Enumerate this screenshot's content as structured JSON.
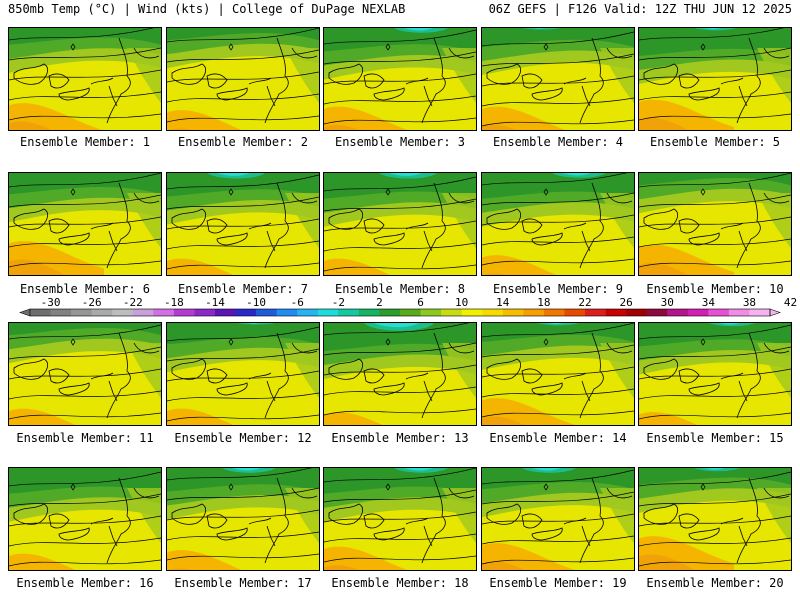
{
  "header": {
    "left": "850mb Temp (°C) | Wind (kts) | College of DuPage NEXLAB",
    "right": "06Z GEFS | F126 Valid: 12Z THU JUN 12 2025"
  },
  "members": [
    {
      "label": "Ensemble Member: 1"
    },
    {
      "label": "Ensemble Member: 2"
    },
    {
      "label": "Ensemble Member: 3"
    },
    {
      "label": "Ensemble Member: 4"
    },
    {
      "label": "Ensemble Member: 5"
    },
    {
      "label": "Ensemble Member: 6"
    },
    {
      "label": "Ensemble Member: 7"
    },
    {
      "label": "Ensemble Member: 8"
    },
    {
      "label": "Ensemble Member: 9"
    },
    {
      "label": "Ensemble Member: 10"
    },
    {
      "label": "Ensemble Member: 11"
    },
    {
      "label": "Ensemble Member: 12"
    },
    {
      "label": "Ensemble Member: 13"
    },
    {
      "label": "Ensemble Member: 14"
    },
    {
      "label": "Ensemble Member: 15"
    },
    {
      "label": "Ensemble Member: 16"
    },
    {
      "label": "Ensemble Member: 17"
    },
    {
      "label": "Ensemble Member: 18"
    },
    {
      "label": "Ensemble Member: 19"
    },
    {
      "label": "Ensemble Member: 20"
    }
  ],
  "colorbar": {
    "ticks": [
      "-30",
      "-26",
      "-22",
      "-18",
      "-14",
      "-10",
      "-6",
      "-2",
      "2",
      "6",
      "10",
      "14",
      "18",
      "22",
      "26",
      "30",
      "34",
      "38",
      "42"
    ],
    "colors": [
      "#6e6e6e",
      "#828282",
      "#969696",
      "#aaaaaa",
      "#bdbdbd",
      "#c8a0dc",
      "#d26ee6",
      "#b43cd2",
      "#8c28c8",
      "#5a14b4",
      "#2828c8",
      "#1e5adc",
      "#1e8cf0",
      "#28b4f0",
      "#1edcdc",
      "#14c8a0",
      "#14b464",
      "#2c9c2c",
      "#5aaa1e",
      "#8cc81e",
      "#c8dc14",
      "#f0f000",
      "#f5dc00",
      "#f5be00",
      "#f5a000",
      "#f07800",
      "#e64b00",
      "#dc1e1e",
      "#c80000",
      "#a00000",
      "#8c0a3c",
      "#b4148c",
      "#d21eb4",
      "#e650d2",
      "#f08ce6",
      "#f5b4f0"
    ]
  },
  "map_colors": {
    "yellow": "#e6e600",
    "light_green": "#a0c81e",
    "green": "#50aa28",
    "dark_green": "#2c9628",
    "teal": "#1ebe8c",
    "cyan": "#28dcd2",
    "orange": "#f5b400",
    "dark_orange": "#f08c14"
  }
}
